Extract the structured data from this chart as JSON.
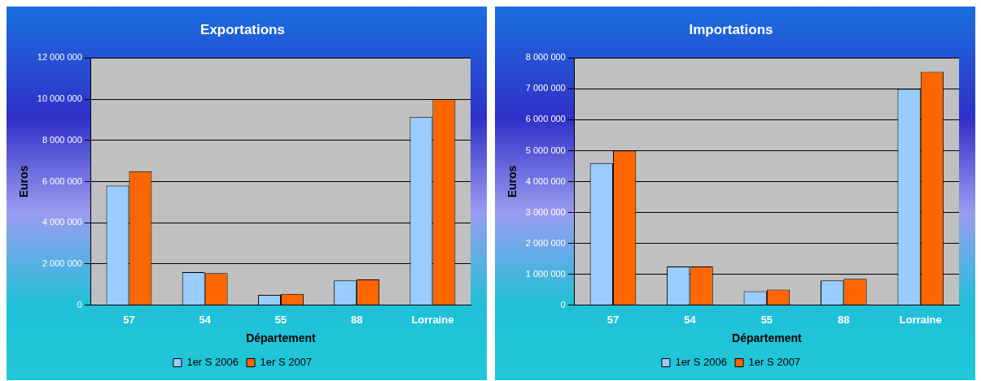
{
  "chart_data": [
    {
      "type": "bar",
      "title": "Exportations",
      "xlabel": "Département",
      "ylabel": "Euros",
      "categories": [
        "57",
        "54",
        "55",
        "88",
        "Lorraine"
      ],
      "series": [
        {
          "name": "1er S 2006",
          "color": "#99ccff",
          "values": [
            5800000,
            1600000,
            500000,
            1200000,
            9150000
          ]
        },
        {
          "name": "1er S 2007",
          "color": "#ff6600",
          "values": [
            6500000,
            1550000,
            550000,
            1250000,
            10000000
          ]
        }
      ],
      "ylim": [
        0,
        12000000
      ],
      "yticks": [
        {
          "value": 0,
          "label": "0"
        },
        {
          "value": 2000000,
          "label": "2 000 000"
        },
        {
          "value": 4000000,
          "label": "4 000 000"
        },
        {
          "value": 6000000,
          "label": "6 000 000"
        },
        {
          "value": 8000000,
          "label": "8 000 000"
        },
        {
          "value": 10000000,
          "label": "10 000 000"
        },
        {
          "value": 12000000,
          "label": "12 000 000"
        }
      ],
      "grid": "y",
      "legend": "bottom"
    },
    {
      "type": "bar",
      "title": "Importations",
      "xlabel": "Département",
      "ylabel": "Euros",
      "categories": [
        "57",
        "54",
        "55",
        "88",
        "Lorraine"
      ],
      "series": [
        {
          "name": "1er S 2006",
          "color": "#99ccff",
          "values": [
            4600000,
            1250000,
            450000,
            800000,
            7000000
          ]
        },
        {
          "name": "1er S 2007",
          "color": "#ff6600",
          "values": [
            5000000,
            1250000,
            500000,
            850000,
            7550000
          ]
        }
      ],
      "ylim": [
        0,
        8000000
      ],
      "yticks": [
        {
          "value": 0,
          "label": "0"
        },
        {
          "value": 1000000,
          "label": "1 000 000"
        },
        {
          "value": 2000000,
          "label": "2 000 000"
        },
        {
          "value": 3000000,
          "label": "3 000 000"
        },
        {
          "value": 4000000,
          "label": "4 000 000"
        },
        {
          "value": 5000000,
          "label": "5 000 000"
        },
        {
          "value": 6000000,
          "label": "6 000 000"
        },
        {
          "value": 7000000,
          "label": "7 000 000"
        },
        {
          "value": 8000000,
          "label": "8 000 000"
        }
      ],
      "grid": "y",
      "legend": "bottom"
    }
  ]
}
